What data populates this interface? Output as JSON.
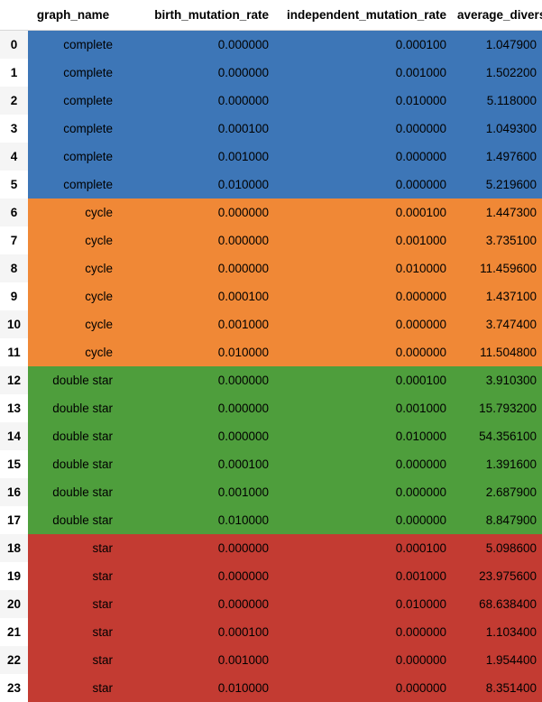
{
  "table": {
    "columns": [
      "",
      "graph_name",
      "birth_mutation_rate",
      "independent_mutation_rate",
      "average_diversity"
    ],
    "group_colors": {
      "complete": "#3D76B7",
      "cycle": "#F08836",
      "double star": "#4E9E3C",
      "star": "#C33B32"
    },
    "rows": [
      {
        "index": "0",
        "graph_name": "complete",
        "birth_mutation_rate": "0.000000",
        "independent_mutation_rate": "0.000100",
        "average_diversity": "1.047900"
      },
      {
        "index": "1",
        "graph_name": "complete",
        "birth_mutation_rate": "0.000000",
        "independent_mutation_rate": "0.001000",
        "average_diversity": "1.502200"
      },
      {
        "index": "2",
        "graph_name": "complete",
        "birth_mutation_rate": "0.000000",
        "independent_mutation_rate": "0.010000",
        "average_diversity": "5.118000"
      },
      {
        "index": "3",
        "graph_name": "complete",
        "birth_mutation_rate": "0.000100",
        "independent_mutation_rate": "0.000000",
        "average_diversity": "1.049300"
      },
      {
        "index": "4",
        "graph_name": "complete",
        "birth_mutation_rate": "0.001000",
        "independent_mutation_rate": "0.000000",
        "average_diversity": "1.497600"
      },
      {
        "index": "5",
        "graph_name": "complete",
        "birth_mutation_rate": "0.010000",
        "independent_mutation_rate": "0.000000",
        "average_diversity": "5.219600"
      },
      {
        "index": "6",
        "graph_name": "cycle",
        "birth_mutation_rate": "0.000000",
        "independent_mutation_rate": "0.000100",
        "average_diversity": "1.447300"
      },
      {
        "index": "7",
        "graph_name": "cycle",
        "birth_mutation_rate": "0.000000",
        "independent_mutation_rate": "0.001000",
        "average_diversity": "3.735100"
      },
      {
        "index": "8",
        "graph_name": "cycle",
        "birth_mutation_rate": "0.000000",
        "independent_mutation_rate": "0.010000",
        "average_diversity": "11.459600"
      },
      {
        "index": "9",
        "graph_name": "cycle",
        "birth_mutation_rate": "0.000100",
        "independent_mutation_rate": "0.000000",
        "average_diversity": "1.437100"
      },
      {
        "index": "10",
        "graph_name": "cycle",
        "birth_mutation_rate": "0.001000",
        "independent_mutation_rate": "0.000000",
        "average_diversity": "3.747400"
      },
      {
        "index": "11",
        "graph_name": "cycle",
        "birth_mutation_rate": "0.010000",
        "independent_mutation_rate": "0.000000",
        "average_diversity": "11.504800"
      },
      {
        "index": "12",
        "graph_name": "double star",
        "birth_mutation_rate": "0.000000",
        "independent_mutation_rate": "0.000100",
        "average_diversity": "3.910300"
      },
      {
        "index": "13",
        "graph_name": "double star",
        "birth_mutation_rate": "0.000000",
        "independent_mutation_rate": "0.001000",
        "average_diversity": "15.793200"
      },
      {
        "index": "14",
        "graph_name": "double star",
        "birth_mutation_rate": "0.000000",
        "independent_mutation_rate": "0.010000",
        "average_diversity": "54.356100"
      },
      {
        "index": "15",
        "graph_name": "double star",
        "birth_mutation_rate": "0.000100",
        "independent_mutation_rate": "0.000000",
        "average_diversity": "1.391600"
      },
      {
        "index": "16",
        "graph_name": "double star",
        "birth_mutation_rate": "0.001000",
        "independent_mutation_rate": "0.000000",
        "average_diversity": "2.687900"
      },
      {
        "index": "17",
        "graph_name": "double star",
        "birth_mutation_rate": "0.010000",
        "independent_mutation_rate": "0.000000",
        "average_diversity": "8.847900"
      },
      {
        "index": "18",
        "graph_name": "star",
        "birth_mutation_rate": "0.000000",
        "independent_mutation_rate": "0.000100",
        "average_diversity": "5.098600"
      },
      {
        "index": "19",
        "graph_name": "star",
        "birth_mutation_rate": "0.000000",
        "independent_mutation_rate": "0.001000",
        "average_diversity": "23.975600"
      },
      {
        "index": "20",
        "graph_name": "star",
        "birth_mutation_rate": "0.000000",
        "independent_mutation_rate": "0.010000",
        "average_diversity": "68.638400"
      },
      {
        "index": "21",
        "graph_name": "star",
        "birth_mutation_rate": "0.000100",
        "independent_mutation_rate": "0.000000",
        "average_diversity": "1.103400"
      },
      {
        "index": "22",
        "graph_name": "star",
        "birth_mutation_rate": "0.001000",
        "independent_mutation_rate": "0.000000",
        "average_diversity": "1.954400"
      },
      {
        "index": "23",
        "graph_name": "star",
        "birth_mutation_rate": "0.010000",
        "independent_mutation_rate": "0.000000",
        "average_diversity": "8.351400"
      }
    ]
  }
}
